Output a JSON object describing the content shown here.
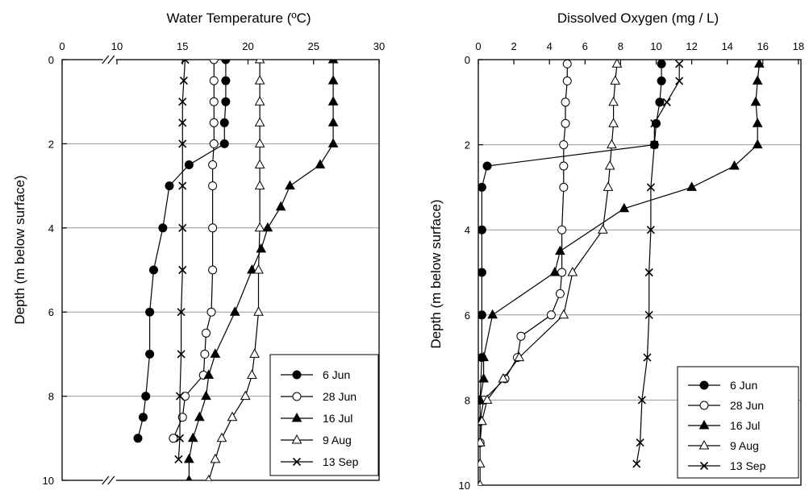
{
  "chart_data": [
    {
      "type": "line",
      "title": "Water Temperature (ºC)",
      "ylabel": "Depth (m below surface)",
      "xlabel": "",
      "x_axis_position": "top",
      "x_ticks": [
        0,
        10,
        15,
        20,
        25,
        30
      ],
      "x_axis_break": [
        0,
        10
      ],
      "xlim": [
        0,
        30
      ],
      "y_ticks": [
        0,
        2,
        4,
        6,
        8,
        10
      ],
      "ylim": [
        0,
        10
      ],
      "y_inverted": true,
      "grid": "horizontal",
      "legend_position": "bottom-right",
      "series": [
        {
          "name": "6 Jun",
          "marker": "filled-circle",
          "points": [
            [
              18.3,
              0
            ],
            [
              18.3,
              0.5
            ],
            [
              18.3,
              1
            ],
            [
              18.2,
              1.5
            ],
            [
              18.2,
              2
            ],
            [
              15.5,
              2.5
            ],
            [
              14.0,
              3
            ],
            [
              13.5,
              4
            ],
            [
              12.8,
              5
            ],
            [
              12.5,
              6
            ],
            [
              12.5,
              7
            ],
            [
              12.2,
              8
            ],
            [
              12.0,
              8.5
            ],
            [
              11.6,
              9
            ]
          ]
        },
        {
          "name": "28 Jun",
          "marker": "open-circle",
          "points": [
            [
              17.4,
              0
            ],
            [
              17.4,
              0.5
            ],
            [
              17.4,
              1
            ],
            [
              17.4,
              1.5
            ],
            [
              17.4,
              2
            ],
            [
              17.3,
              2.5
            ],
            [
              17.3,
              3
            ],
            [
              17.3,
              4
            ],
            [
              17.3,
              5
            ],
            [
              17.2,
              6
            ],
            [
              16.8,
              6.5
            ],
            [
              16.7,
              7
            ],
            [
              16.6,
              7.5
            ],
            [
              15.2,
              8
            ],
            [
              15.0,
              8.5
            ],
            [
              14.3,
              9
            ]
          ]
        },
        {
          "name": "16 Jul",
          "marker": "filled-triangle",
          "points": [
            [
              26.5,
              0
            ],
            [
              26.5,
              0.5
            ],
            [
              26.5,
              1
            ],
            [
              26.5,
              1.5
            ],
            [
              26.5,
              2
            ],
            [
              25.5,
              2.5
            ],
            [
              23.2,
              3
            ],
            [
              22.5,
              3.5
            ],
            [
              21.5,
              4
            ],
            [
              21.0,
              4.5
            ],
            [
              20.3,
              5
            ],
            [
              19.0,
              6
            ],
            [
              17.5,
              7
            ],
            [
              17.0,
              7.5
            ],
            [
              16.8,
              8
            ],
            [
              16.3,
              8.5
            ],
            [
              15.8,
              9
            ],
            [
              15.5,
              9.5
            ],
            [
              15.5,
              10
            ]
          ]
        },
        {
          "name": "9 Aug",
          "marker": "open-triangle",
          "points": [
            [
              20.9,
              0
            ],
            [
              20.9,
              0.5
            ],
            [
              20.9,
              1
            ],
            [
              20.9,
              1.5
            ],
            [
              20.9,
              2
            ],
            [
              20.9,
              2.5
            ],
            [
              20.9,
              3
            ],
            [
              20.9,
              4
            ],
            [
              20.8,
              5
            ],
            [
              20.8,
              6
            ],
            [
              20.5,
              7
            ],
            [
              20.3,
              7.5
            ],
            [
              19.8,
              8
            ],
            [
              18.8,
              8.5
            ],
            [
              18.0,
              9
            ],
            [
              17.5,
              9.5
            ],
            [
              17.0,
              10
            ]
          ]
        },
        {
          "name": "13 Sep",
          "marker": "cross",
          "points": [
            [
              15.2,
              0
            ],
            [
              15.1,
              0.5
            ],
            [
              15.0,
              1
            ],
            [
              15.0,
              1.5
            ],
            [
              15.0,
              2
            ],
            [
              15.0,
              3
            ],
            [
              15.0,
              4
            ],
            [
              15.0,
              5
            ],
            [
              14.9,
              6
            ],
            [
              14.9,
              7
            ],
            [
              14.8,
              8
            ],
            [
              14.8,
              9
            ],
            [
              14.7,
              9.5
            ]
          ]
        }
      ],
      "legend": [
        "6 Jun",
        "28 Jun",
        "16 Jul",
        "9 Aug",
        "13 Sep"
      ]
    },
    {
      "type": "line",
      "title": "Dissolved Oxygen (mg / L)",
      "ylabel": "Depth (m below surface)",
      "xlabel": "",
      "x_axis_position": "top",
      "x_ticks": [
        0,
        2,
        4,
        6,
        8,
        10,
        12,
        14,
        16,
        18
      ],
      "xlim": [
        0,
        18
      ],
      "y_ticks": [
        0,
        2,
        4,
        6,
        8,
        10
      ],
      "ylim": [
        0,
        10
      ],
      "y_inverted": true,
      "grid": "horizontal",
      "legend_position": "bottom-right",
      "series": [
        {
          "name": "6 Jun",
          "marker": "filled-circle",
          "points": [
            [
              10.3,
              0.1
            ],
            [
              10.3,
              0.5
            ],
            [
              10.2,
              1
            ],
            [
              10.0,
              1.5
            ],
            [
              9.9,
              2
            ],
            [
              0.5,
              2.5
            ],
            [
              0.2,
              3
            ],
            [
              0.2,
              4
            ],
            [
              0.2,
              5
            ],
            [
              0.2,
              6
            ],
            [
              0.2,
              7
            ],
            [
              0.1,
              8
            ]
          ]
        },
        {
          "name": "28 Jun",
          "marker": "open-circle",
          "points": [
            [
              5.0,
              0.1
            ],
            [
              5.0,
              0.5
            ],
            [
              4.9,
              1
            ],
            [
              4.9,
              1.5
            ],
            [
              4.8,
              2
            ],
            [
              4.8,
              2.5
            ],
            [
              4.8,
              3
            ],
            [
              4.7,
              4
            ],
            [
              4.7,
              5
            ],
            [
              4.6,
              5.5
            ],
            [
              4.1,
              6
            ],
            [
              2.4,
              6.5
            ],
            [
              2.2,
              7
            ],
            [
              1.5,
              7.5
            ],
            [
              0.3,
              8
            ],
            [
              0.1,
              8.5
            ],
            [
              0.1,
              9
            ]
          ]
        },
        {
          "name": "16 Jul",
          "marker": "filled-triangle",
          "points": [
            [
              15.8,
              0.1
            ],
            [
              15.7,
              0.5
            ],
            [
              15.6,
              1
            ],
            [
              15.7,
              1.5
            ],
            [
              15.7,
              2
            ],
            [
              14.4,
              2.5
            ],
            [
              12.0,
              3
            ],
            [
              8.2,
              3.5
            ],
            [
              4.6,
              4.5
            ],
            [
              4.3,
              5
            ],
            [
              0.8,
              6
            ],
            [
              0.3,
              7
            ],
            [
              0.3,
              7.5
            ],
            [
              0.1,
              8
            ],
            [
              0.1,
              8.5
            ],
            [
              0.1,
              9
            ]
          ]
        },
        {
          "name": "9 Aug",
          "marker": "open-triangle",
          "points": [
            [
              7.8,
              0.1
            ],
            [
              7.7,
              0.5
            ],
            [
              7.6,
              1
            ],
            [
              7.6,
              1.5
            ],
            [
              7.5,
              2
            ],
            [
              7.4,
              2.5
            ],
            [
              7.3,
              3
            ],
            [
              7.0,
              4
            ],
            [
              5.3,
              5
            ],
            [
              4.8,
              6
            ],
            [
              2.3,
              7
            ],
            [
              1.4,
              7.5
            ],
            [
              0.5,
              8
            ],
            [
              0.2,
              8.5
            ],
            [
              0.1,
              9
            ],
            [
              0.1,
              9.5
            ],
            [
              0.1,
              10
            ]
          ]
        },
        {
          "name": "13 Sep",
          "marker": "cross",
          "points": [
            [
              11.3,
              0.1
            ],
            [
              11.3,
              0.5
            ],
            [
              10.6,
              1
            ],
            [
              9.9,
              1.5
            ],
            [
              9.9,
              2
            ],
            [
              9.7,
              3
            ],
            [
              9.7,
              4
            ],
            [
              9.6,
              5
            ],
            [
              9.6,
              6
            ],
            [
              9.5,
              7
            ],
            [
              9.2,
              8
            ],
            [
              9.1,
              9
            ],
            [
              8.9,
              9.5
            ]
          ]
        }
      ],
      "legend": [
        "6 Jun",
        "28 Jun",
        "16 Jul",
        "9 Aug",
        "13 Sep"
      ]
    }
  ]
}
